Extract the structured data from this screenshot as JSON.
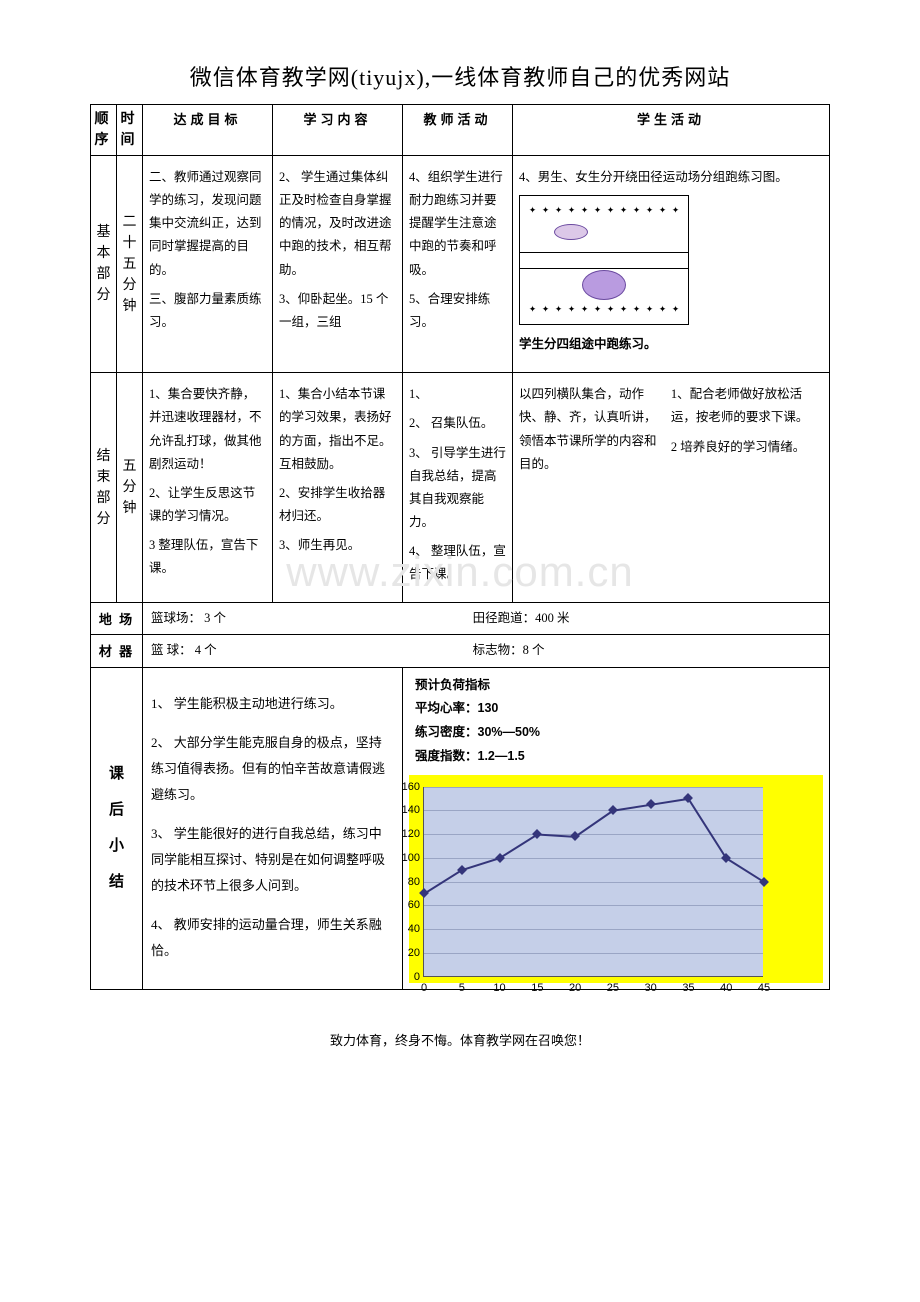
{
  "title": "微信体育教学网(tiyujx),一线体育教师自己的优秀网站",
  "watermark": "www.zixin.com.cn",
  "footer": "致力体育，终身不悔。体育教学网在召唤您！",
  "headers": {
    "h1": "顺序",
    "h2": "时间",
    "h3": "达成目标",
    "h4": "学习内容",
    "h5": "教师活动",
    "h6": "学生活动"
  },
  "row_basic": {
    "section": "基本部分",
    "time": "二十五分钟",
    "goal": {
      "p1": "二、教师通过观察同学的练习，发现问题集中交流纠正，达到同时掌握提高的目的。",
      "p2": "三、腹部力量素质练习。"
    },
    "content": {
      "p1": "2、 学生通过集体纠正及时检查自身掌握的情况，及时改进途中跑的技术，相互帮助。",
      "p2": "3、仰卧起坐。15 个一组，三组"
    },
    "teacher": {
      "p1": "4、组织学生进行耐力跑练习并要提醒学生注意途中跑的节奏和呼吸。",
      "p2": "5、合理安排练习。"
    },
    "student": {
      "top": "4、男生、女生分开绕田径运动场分组跑练习图。",
      "caption": "学生分四组途中跑练习。"
    }
  },
  "row_end": {
    "section": "结束部分",
    "time": "五分钟",
    "goal": {
      "p1": "1、集合要快齐静，并迅速收理器材，不允许乱打球，做其他剧烈运动！",
      "p2": "2、让学生反思这节课的学习情况。",
      "p3": "3 整理队伍，宣告下课。"
    },
    "content": {
      "p1": "1、集合小结本节课的学习效果，表扬好的方面，指出不足。互相鼓励。",
      "p2": "2、安排学生收拾器材归还。",
      "p3": "3、师生再见。"
    },
    "teacher": {
      "p0": "1、",
      "p1": "2、 召集队伍。",
      "p2": "3、 引导学生进行自我总结，提高其自我观察能力。",
      "p3": "4、 整理队伍，宣告下课。"
    },
    "student": {
      "left": "以四列横队集合，动作快、静、齐，认真听讲，领悟本节课所学的内容和目的。",
      "r1": "1、配合老师做好放松活运，按老师的要求下课。",
      "r2": "2 培养良好的学习情绪。"
    }
  },
  "venue": {
    "label1": "地 场",
    "label2": "材 器",
    "court_l": "篮球场：  3 个",
    "court_r": "田径跑道：400 米",
    "equip_l": "篮  球：  4 个",
    "equip_r": "标志物：8 个"
  },
  "summary": {
    "label": "课后小结",
    "p1": "1、 学生能积极主动地进行练习。",
    "p2": "2、 大部分学生能克服自身的极点，坚持练习值得表扬。但有的怕辛苦故意请假逃避练习。",
    "p3": "3、 学生能很好的进行自我总结，练习中同学能相互探讨、特别是在如何调整呼吸的技术环节上很多人问到。",
    "p4": "4、 教师安排的运动量合理，师生关系融恰。"
  },
  "metrics": {
    "m1": "预计负荷指标",
    "m2": "平均心率：130",
    "m3": "练习密度：30%—50%",
    "m4": "强度指数：1.2—1.5"
  },
  "chart": {
    "type": "line",
    "background_color": "#c5cfe8",
    "wrap_color": "#ffff00",
    "line_color": "#34357a",
    "marker_color": "#34357a",
    "grid_color": "#9aa5c4",
    "line_width": 2,
    "marker_size": 7,
    "xlim": [
      0,
      45
    ],
    "ylim": [
      0,
      160
    ],
    "xtick_step": 5,
    "ytick_step": 20,
    "x_values": [
      0,
      5,
      10,
      15,
      20,
      25,
      30,
      35,
      40,
      45
    ],
    "y_values": [
      70,
      90,
      100,
      120,
      118,
      140,
      145,
      150,
      100,
      80
    ]
  },
  "track_colors": {
    "ellipse_small_fill": "#dcc8e8",
    "ellipse_small_border": "#6b4aa0",
    "ellipse_big_fill": "#b99be0",
    "ellipse_big_border": "#6b4aa0"
  }
}
